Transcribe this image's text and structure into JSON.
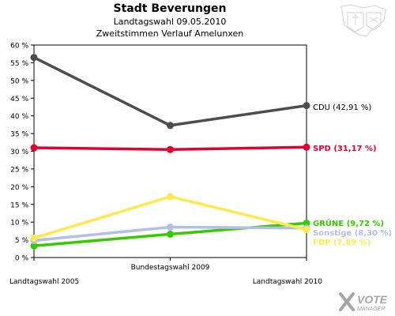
{
  "header": {
    "title": "Stadt Beverungen",
    "subtitle": "Landtagswahl 09.05.2010",
    "subtitle2": "Zweitstimmen Verlauf Amelunxen"
  },
  "logo": {
    "line1": "VOTE",
    "line2": "MANAGER"
  },
  "emblem": {
    "icon": "coat-of-arms-icon"
  },
  "chart_data": {
    "type": "line",
    "categories": [
      "Landtagswahl 2005",
      "Bundestagswahl 2009",
      "Landtagswahl 2010"
    ],
    "ylim": [
      0,
      60
    ],
    "yticks": [
      0,
      5,
      10,
      15,
      20,
      25,
      30,
      35,
      40,
      45,
      50,
      55,
      60
    ],
    "ytick_labels": [
      "0 %",
      "5 %",
      "10 %",
      "15 %",
      "20 %",
      "25 %",
      "30 %",
      "35 %",
      "40 %",
      "45 %",
      "50 %",
      "55 %",
      "60 %"
    ],
    "grid": false,
    "series": [
      {
        "name": "CDU",
        "label": "CDU (42,91 %)",
        "color": "#4d4d4d",
        "values": [
          56.5,
          37.3,
          42.91
        ]
      },
      {
        "name": "SPD",
        "label": "SPD (31,17 %)",
        "color": "#e4002b",
        "values": [
          31.0,
          30.5,
          31.17
        ]
      },
      {
        "name": "GRÜNE",
        "label": "GRÜNE (9,72 %)",
        "color": "#33cc00",
        "values": [
          3.3,
          6.6,
          9.72
        ]
      },
      {
        "name": "Sonstige",
        "label": "Sonstige (8,30 %)",
        "color": "#b3bfe6",
        "values": [
          4.8,
          8.6,
          8.3
        ]
      },
      {
        "name": "FDP",
        "label": "FDP (7,89 %)",
        "color": "#ffe94d",
        "values": [
          5.5,
          17.2,
          7.89
        ]
      }
    ]
  }
}
